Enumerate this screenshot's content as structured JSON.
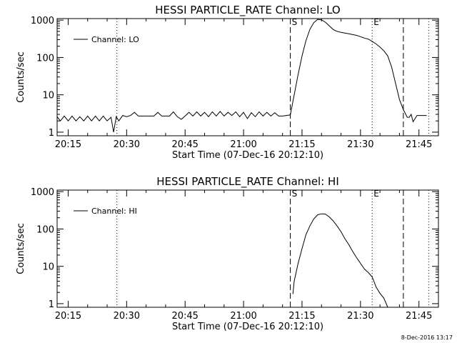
{
  "footer": {
    "timestamp": "8-Dec-2016 13:17"
  },
  "chart_data": [
    {
      "type": "line",
      "title": "HESSI PARTICLE_RATE Channel: LO",
      "xlabel": "Start Time (07-Dec-16 20:12:10)",
      "ylabel": "Counts/sec",
      "legend": {
        "position": "top-left",
        "entries": [
          "Channel: LO"
        ]
      },
      "x_unit": "time (HH:MM)",
      "xlim": [
        "20:12:10",
        "21:50:00"
      ],
      "x_ticks": [
        "20:15",
        "20:30",
        "20:45",
        "21:00",
        "21:15",
        "21:30",
        "21:45"
      ],
      "y_scale": "log",
      "ylim": [
        0.8,
        1100
      ],
      "y_ticks": [
        "1",
        "10",
        "100",
        "1000"
      ],
      "grid": false,
      "markers": [
        {
          "label": "S",
          "time": "21:12:00",
          "style": "dashed"
        },
        {
          "label": "E",
          "time": "21:33:00",
          "style": "dotted"
        },
        {
          "time": "21:41:00",
          "style": "dashed"
        },
        {
          "time": "20:27:30",
          "style": "dotted"
        },
        {
          "time": "21:47:30",
          "style": "dotted"
        }
      ],
      "series": [
        {
          "name": "Channel: LO",
          "points": [
            [
              "20:12:10",
              2.6
            ],
            [
              "20:13:00",
              2.0
            ],
            [
              "20:14:00",
              2.7
            ],
            [
              "20:15:00",
              2.0
            ],
            [
              "20:16:00",
              2.7
            ],
            [
              "20:17:00",
              2.0
            ],
            [
              "20:18:00",
              2.6
            ],
            [
              "20:19:00",
              2.0
            ],
            [
              "20:20:00",
              2.7
            ],
            [
              "20:21:00",
              2.0
            ],
            [
              "20:22:00",
              2.7
            ],
            [
              "20:23:00",
              2.0
            ],
            [
              "20:24:00",
              2.7
            ],
            [
              "20:25:00",
              2.0
            ],
            [
              "20:26:00",
              2.5
            ],
            [
              "20:26:40",
              1.0
            ],
            [
              "20:27:20",
              2.6
            ],
            [
              "20:28:00",
              2.0
            ],
            [
              "20:29:00",
              2.8
            ],
            [
              "20:30:00",
              2.6
            ],
            [
              "20:31:00",
              2.8
            ],
            [
              "20:32:00",
              3.4
            ],
            [
              "20:33:00",
              2.7
            ],
            [
              "20:35:00",
              2.7
            ],
            [
              "20:37:00",
              2.7
            ],
            [
              "20:38:00",
              3.4
            ],
            [
              "20:39:00",
              2.7
            ],
            [
              "20:41:00",
              2.7
            ],
            [
              "20:42:00",
              3.5
            ],
            [
              "20:43:00",
              2.6
            ],
            [
              "20:44:00",
              2.2
            ],
            [
              "20:45:00",
              2.7
            ],
            [
              "20:46:00",
              3.4
            ],
            [
              "20:47:00",
              2.7
            ],
            [
              "20:48:00",
              3.5
            ],
            [
              "20:49:00",
              2.7
            ],
            [
              "20:50:00",
              3.4
            ],
            [
              "20:51:00",
              2.6
            ],
            [
              "20:52:00",
              3.5
            ],
            [
              "20:53:00",
              2.7
            ],
            [
              "20:54:00",
              3.6
            ],
            [
              "20:55:00",
              2.7
            ],
            [
              "20:56:00",
              3.4
            ],
            [
              "20:57:00",
              2.8
            ],
            [
              "20:58:00",
              3.5
            ],
            [
              "20:59:00",
              2.6
            ],
            [
              "21:00:00",
              3.4
            ],
            [
              "21:01:00",
              2.3
            ],
            [
              "21:02:00",
              3.3
            ],
            [
              "21:03:00",
              2.6
            ],
            [
              "21:04:00",
              3.5
            ],
            [
              "21:05:00",
              2.7
            ],
            [
              "21:06:00",
              3.4
            ],
            [
              "21:07:00",
              2.7
            ],
            [
              "21:08:00",
              3.3
            ],
            [
              "21:09:00",
              2.7
            ],
            [
              "21:10:00",
              2.7
            ],
            [
              "21:11:00",
              2.8
            ],
            [
              "21:12:00",
              2.9
            ],
            [
              "21:13:00",
              10
            ],
            [
              "21:14:00",
              35
            ],
            [
              "21:15:00",
              110
            ],
            [
              "21:16:00",
              280
            ],
            [
              "21:17:00",
              560
            ],
            [
              "21:18:00",
              850
            ],
            [
              "21:19:00",
              1050
            ],
            [
              "21:20:00",
              1020
            ],
            [
              "21:21:00",
              880
            ],
            [
              "21:22:00",
              700
            ],
            [
              "21:23:00",
              560
            ],
            [
              "21:24:00",
              500
            ],
            [
              "21:25:00",
              470
            ],
            [
              "21:26:00",
              450
            ],
            [
              "21:27:00",
              430
            ],
            [
              "21:28:00",
              410
            ],
            [
              "21:29:00",
              390
            ],
            [
              "21:30:00",
              360
            ],
            [
              "21:31:00",
              330
            ],
            [
              "21:32:00",
              310
            ],
            [
              "21:33:00",
              270
            ],
            [
              "21:34:00",
              230
            ],
            [
              "21:35:00",
              190
            ],
            [
              "21:36:00",
              150
            ],
            [
              "21:37:00",
              110
            ],
            [
              "21:38:00",
              55
            ],
            [
              "21:39:00",
              20
            ],
            [
              "21:40:00",
              7.5
            ],
            [
              "21:41:00",
              4.0
            ],
            [
              "21:42:00",
              2.5
            ],
            [
              "21:42:30",
              2.5
            ],
            [
              "21:43:00",
              3.0
            ],
            [
              "21:43:30",
              1.9
            ],
            [
              "21:44:30",
              2.8
            ],
            [
              "21:47:00",
              2.8
            ]
          ]
        }
      ]
    },
    {
      "type": "line",
      "title": "HESSI PARTICLE_RATE Channel: HI",
      "xlabel": "Start Time (07-Dec-16 20:12:10)",
      "ylabel": "Counts/sec",
      "legend": {
        "position": "top-left",
        "entries": [
          "Channel: HI"
        ]
      },
      "x_unit": "time (HH:MM)",
      "xlim": [
        "20:12:10",
        "21:50:00"
      ],
      "x_ticks": [
        "20:15",
        "20:30",
        "20:45",
        "21:00",
        "21:15",
        "21:30",
        "21:45"
      ],
      "y_scale": "log",
      "ylim": [
        0.8,
        1100
      ],
      "y_ticks": [
        "1",
        "10",
        "100",
        "1000"
      ],
      "grid": false,
      "markers": [
        {
          "label": "S",
          "time": "21:12:00",
          "style": "dashed"
        },
        {
          "label": "E",
          "time": "21:33:00",
          "style": "dotted"
        },
        {
          "time": "21:41:00",
          "style": "dashed"
        },
        {
          "time": "20:27:30",
          "style": "dotted"
        },
        {
          "time": "21:47:30",
          "style": "dotted"
        }
      ],
      "series": [
        {
          "name": "Channel: HI",
          "points": [
            [
              "21:12:40",
              1.8
            ],
            [
              "21:13:00",
              4.0
            ],
            [
              "21:14:00",
              12
            ],
            [
              "21:15:00",
              30
            ],
            [
              "21:16:00",
              70
            ],
            [
              "21:17:00",
              120
            ],
            [
              "21:18:00",
              185
            ],
            [
              "21:19:00",
              240
            ],
            [
              "21:20:00",
              255
            ],
            [
              "21:21:00",
              250
            ],
            [
              "21:22:00",
              210
            ],
            [
              "21:23:00",
              165
            ],
            [
              "21:24:00",
              120
            ],
            [
              "21:25:00",
              85
            ],
            [
              "21:26:00",
              55
            ],
            [
              "21:27:00",
              38
            ],
            [
              "21:28:00",
              25
            ],
            [
              "21:29:00",
              17
            ],
            [
              "21:30:00",
              12
            ],
            [
              "21:31:00",
              8.5
            ],
            [
              "21:32:00",
              6.8
            ],
            [
              "21:33:00",
              5.2
            ],
            [
              "21:34:00",
              2.8
            ],
            [
              "21:35:00",
              1.9
            ],
            [
              "21:36:00",
              1.4
            ],
            [
              "21:37:00",
              0.8
            ]
          ]
        }
      ]
    }
  ]
}
